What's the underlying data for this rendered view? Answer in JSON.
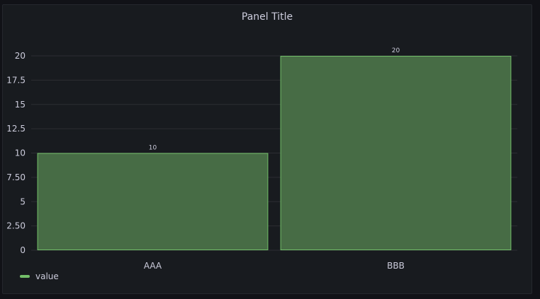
{
  "panel": {
    "title": "Panel Title"
  },
  "colors": {
    "series_fill": "#476c45",
    "series_stroke": "#73bf69",
    "grid": "#2c2e33",
    "text": "#ccccdc"
  },
  "chart_data": {
    "type": "bar",
    "categories": [
      "AAA",
      "BBB"
    ],
    "series": [
      {
        "name": "value",
        "values": [
          10,
          20
        ]
      }
    ],
    "yticks": [
      "0",
      "2.50",
      "5",
      "7.50",
      "10",
      "12.5",
      "15",
      "17.5",
      "20"
    ],
    "ylim": [
      0,
      20
    ],
    "grid": true,
    "legend": "bottom-left"
  }
}
